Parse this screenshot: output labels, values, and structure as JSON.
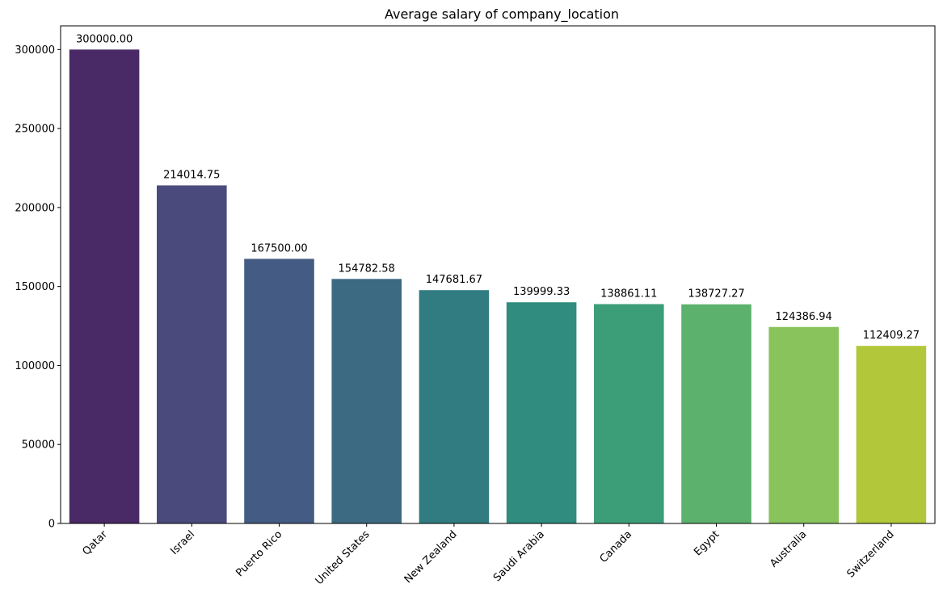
{
  "chart_data": {
    "type": "bar",
    "title": "Average salary of company_location",
    "xlabel": "",
    "ylabel": "",
    "categories": [
      "Qatar",
      "Israel",
      "Puerto Rico",
      "United States",
      "New Zealand",
      "Saudi Arabia",
      "Canada",
      "Egypt",
      "Australia",
      "Switzerland"
    ],
    "values": [
      300000.0,
      214014.75,
      167500.0,
      154782.58,
      147681.67,
      139999.33,
      138861.11,
      138727.27,
      124386.94,
      112409.27
    ],
    "data_labels": [
      "300000.00",
      "214014.75",
      "167500.00",
      "154782.58",
      "147681.67",
      "139999.33",
      "138861.11",
      "138727.27",
      "124386.94",
      "112409.27"
    ],
    "colors": [
      "#4a2a66",
      "#4b4a7d",
      "#445c83",
      "#3b6a82",
      "#317c80",
      "#2f8c7e",
      "#3c9e78",
      "#5cb26c",
      "#88c35b",
      "#b2c73a"
    ],
    "ylim": [
      0,
      315000
    ],
    "yticks": [
      0,
      50000,
      100000,
      150000,
      200000,
      250000,
      300000
    ],
    "ytick_labels": [
      "0",
      "50000",
      "100000",
      "150000",
      "200000",
      "250000",
      "300000"
    ],
    "grid": false,
    "legend": "none"
  }
}
